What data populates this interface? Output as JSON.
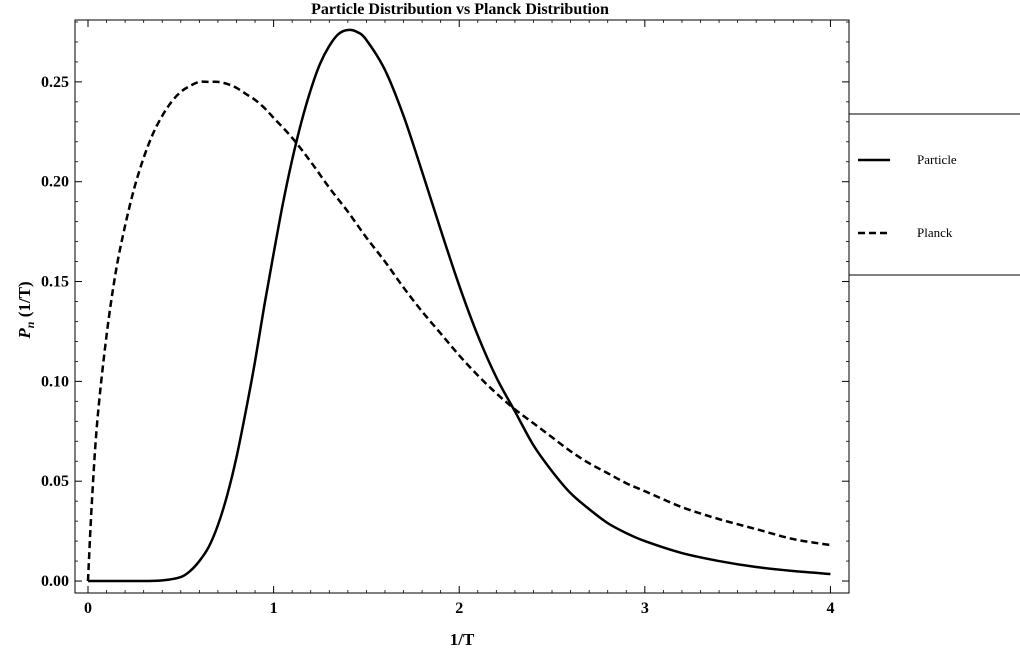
{
  "chart_data": {
    "type": "line",
    "title": "Particle Distribution vs Planck Distribution",
    "xlabel": "1/T",
    "ylabel_main": "P",
    "ylabel_sub": "n",
    "ylabel_rest": " (1/T)",
    "xlim": [
      -0.07,
      4.1
    ],
    "ylim": [
      -0.006,
      0.281
    ],
    "x_ticks": [
      0,
      1,
      2,
      3,
      4
    ],
    "x_tick_labels": [
      "0",
      "1",
      "2",
      "3",
      "4"
    ],
    "y_ticks": [
      0,
      0.05,
      0.1,
      0.15,
      0.2,
      0.25
    ],
    "y_tick_labels": [
      "0.00",
      "0.05",
      "0.10",
      "0.15",
      "0.20",
      "0.25"
    ],
    "grid": false,
    "legend_position": "right",
    "series": [
      {
        "name": "Particle",
        "style": "solid",
        "color": "#000000",
        "x": [
          0,
          0.1,
          0.2,
          0.3,
          0.4,
          0.5,
          0.55,
          0.6,
          0.65,
          0.7,
          0.75,
          0.8,
          0.85,
          0.9,
          0.95,
          1.0,
          1.05,
          1.1,
          1.15,
          1.2,
          1.25,
          1.3,
          1.35,
          1.4,
          1.45,
          1.5,
          1.6,
          1.7,
          1.8,
          1.9,
          2.0,
          2.1,
          2.2,
          2.3,
          2.4,
          2.5,
          2.6,
          2.7,
          2.8,
          2.9,
          3.0,
          3.2,
          3.4,
          3.6,
          3.8,
          4.0
        ],
        "y": [
          0.0,
          0.0,
          0.0,
          0.0,
          0.0003,
          0.002,
          0.005,
          0.01,
          0.017,
          0.028,
          0.043,
          0.062,
          0.085,
          0.11,
          0.138,
          0.164,
          0.189,
          0.211,
          0.23,
          0.246,
          0.259,
          0.268,
          0.274,
          0.276,
          0.275,
          0.271,
          0.256,
          0.233,
          0.205,
          0.176,
          0.148,
          0.123,
          0.102,
          0.085,
          0.068,
          0.055,
          0.044,
          0.036,
          0.029,
          0.024,
          0.02,
          0.014,
          0.01,
          0.007,
          0.005,
          0.0035
        ]
      },
      {
        "name": "Planck",
        "style": "dashed",
        "color": "#000000",
        "x": [
          0,
          0.02,
          0.05,
          0.1,
          0.15,
          0.2,
          0.25,
          0.3,
          0.35,
          0.4,
          0.45,
          0.5,
          0.55,
          0.6,
          0.65,
          0.7,
          0.75,
          0.8,
          0.85,
          0.9,
          0.95,
          1.0,
          1.1,
          1.2,
          1.3,
          1.4,
          1.5,
          1.6,
          1.7,
          1.8,
          1.9,
          2.0,
          2.1,
          2.2,
          2.3,
          2.4,
          2.5,
          2.6,
          2.7,
          2.8,
          2.9,
          3.0,
          3.2,
          3.4,
          3.6,
          3.8,
          4.0
        ],
        "y": [
          0.0,
          0.038,
          0.08,
          0.123,
          0.155,
          0.178,
          0.197,
          0.212,
          0.224,
          0.233,
          0.24,
          0.245,
          0.248,
          0.25,
          0.25,
          0.25,
          0.249,
          0.247,
          0.244,
          0.241,
          0.237,
          0.232,
          0.222,
          0.21,
          0.197,
          0.185,
          0.172,
          0.16,
          0.147,
          0.135,
          0.124,
          0.113,
          0.103,
          0.094,
          0.086,
          0.079,
          0.072,
          0.065,
          0.059,
          0.054,
          0.049,
          0.045,
          0.037,
          0.031,
          0.026,
          0.021,
          0.018
        ]
      }
    ]
  }
}
